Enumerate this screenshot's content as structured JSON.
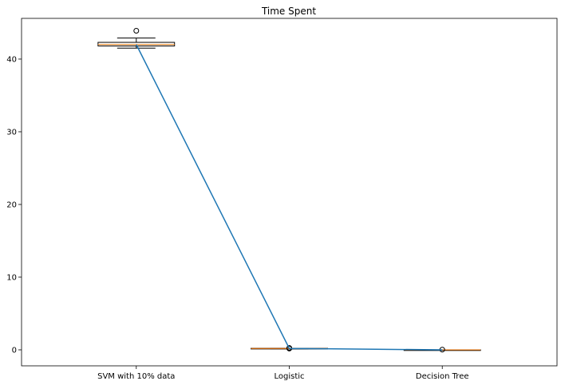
{
  "chart_data": {
    "type": "box",
    "title": "Time Spent",
    "xlabel": "",
    "ylabel": "",
    "categories": [
      "SVM with 10% data",
      "Logistic",
      "Decision Tree"
    ],
    "ylim": [
      -2.2,
      45.6
    ],
    "yticks": [
      0,
      10,
      20,
      30,
      40
    ],
    "grid": false,
    "boxes": [
      {
        "category": "SVM with 10% data",
        "whislo": 41.5,
        "q1": 41.8,
        "median": 42.0,
        "q3": 42.3,
        "whishi": 42.9,
        "fliers": [
          43.9
        ]
      },
      {
        "category": "Logistic",
        "whislo": 0.15,
        "q1": 0.17,
        "median": 0.19,
        "q3": 0.21,
        "whishi": 0.22,
        "fliers": [
          0.26,
          0.18
        ]
      },
      {
        "category": "Decision Tree",
        "whislo": 0.0,
        "q1": 0.0,
        "median": 0.0,
        "q3": 0.0,
        "whishi": 0.0,
        "fliers": [
          0.03
        ]
      }
    ],
    "series": [
      {
        "values": [
          42.0,
          0.19,
          0.0
        ]
      }
    ],
    "colors": {
      "line": "#1f77b4",
      "median": "#ff7f0e",
      "box": "#000000"
    }
  }
}
